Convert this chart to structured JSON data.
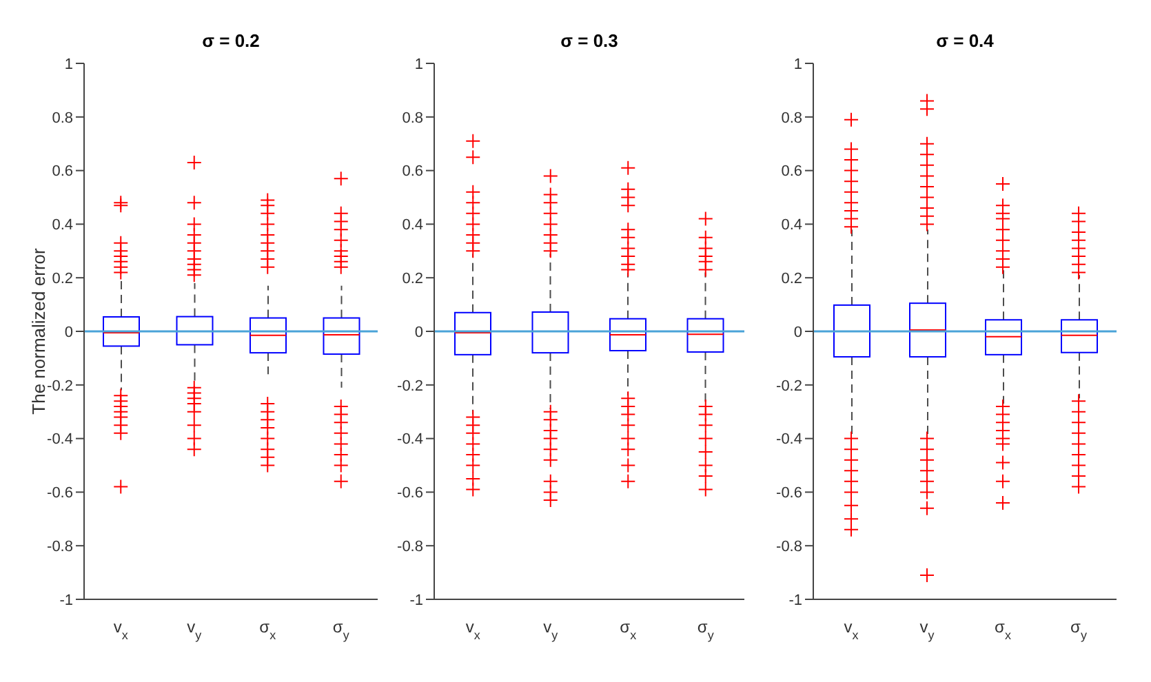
{
  "chart_data": [
    {
      "type": "box",
      "title": "σ = 0.2",
      "ylabel": "The normalized error",
      "categories": [
        "v$_{x}$",
        "v$_{y}$",
        "σ$_{x}$",
        "σ$_{y}$"
      ],
      "color": "#0000ff",
      "marker": "cross",
      "ylim": [
        -1,
        1
      ],
      "yticks": [
        -1,
        -0.8,
        -0.6,
        -0.4,
        -0.2,
        0,
        0.2,
        0.4,
        0.6,
        0.8,
        1
      ],
      "ref_lines": [
        {
          "axis": "y",
          "value": 0,
          "color": "#4aa3d8"
        }
      ],
      "boxes": [
        {
          "low": -0.22,
          "q1": -0.055,
          "median": -0.005,
          "q3": 0.054,
          "high": 0.19,
          "outliers": [
            0.22,
            0.24,
            0.26,
            0.28,
            0.3,
            0.33,
            0.47,
            0.48,
            -0.24,
            -0.26,
            -0.28,
            -0.3,
            -0.32,
            -0.35,
            -0.38,
            -0.58
          ]
        },
        {
          "low": -0.2,
          "q1": -0.05,
          "median": 0,
          "q3": 0.055,
          "high": 0.18,
          "outliers": [
            0.21,
            0.23,
            0.25,
            0.27,
            0.3,
            0.33,
            0.36,
            0.4,
            0.48,
            0.63,
            -0.21,
            -0.23,
            -0.25,
            -0.27,
            -0.3,
            -0.35,
            -0.4,
            -0.44
          ]
        },
        {
          "low": -0.16,
          "q1": -0.08,
          "median": -0.015,
          "q3": 0.05,
          "high": 0.17,
          "outliers": [
            0.24,
            0.27,
            0.3,
            0.33,
            0.36,
            0.4,
            0.44,
            0.47,
            0.49,
            -0.27,
            -0.3,
            -0.33,
            -0.36,
            -0.4,
            -0.44,
            -0.47,
            -0.5
          ]
        },
        {
          "low": -0.21,
          "q1": -0.085,
          "median": -0.013,
          "q3": 0.05,
          "high": 0.17,
          "outliers": [
            0.24,
            0.26,
            0.28,
            0.3,
            0.34,
            0.38,
            0.41,
            0.44,
            0.57,
            -0.28,
            -0.31,
            -0.34,
            -0.38,
            -0.42,
            -0.46,
            -0.5,
            -0.56
          ]
        }
      ]
    },
    {
      "type": "box",
      "title": "σ = 0.3",
      "categories": [
        "v$_{x}$",
        "v$_{y}$",
        "σ$_{x}$",
        "σ$_{y}$"
      ],
      "color": "#0000ff",
      "marker": "cross",
      "ylim": [
        -1,
        1
      ],
      "yticks": [
        -1,
        -0.8,
        -0.6,
        -0.4,
        -0.2,
        0,
        0.2,
        0.4,
        0.6,
        0.8,
        1
      ],
      "ref_lines": [
        {
          "axis": "y",
          "value": 0,
          "color": "#4aa3d8"
        }
      ],
      "boxes": [
        {
          "low": -0.31,
          "q1": -0.087,
          "median": -0.005,
          "q3": 0.07,
          "high": 0.29,
          "outliers": [
            0.3,
            0.33,
            0.36,
            0.4,
            0.44,
            0.48,
            0.52,
            0.65,
            0.71,
            -0.32,
            -0.35,
            -0.38,
            -0.42,
            -0.46,
            -0.5,
            -0.55,
            -0.59
          ]
        },
        {
          "low": -0.29,
          "q1": -0.08,
          "median": 0,
          "q3": 0.072,
          "high": 0.29,
          "outliers": [
            0.3,
            0.33,
            0.36,
            0.4,
            0.44,
            0.48,
            0.51,
            0.58,
            -0.3,
            -0.33,
            -0.37,
            -0.4,
            -0.44,
            -0.48,
            -0.56,
            -0.6,
            -0.63
          ]
        },
        {
          "low": -0.24,
          "q1": -0.072,
          "median": -0.013,
          "q3": 0.047,
          "high": 0.22,
          "outliers": [
            0.23,
            0.25,
            0.28,
            0.31,
            0.35,
            0.38,
            0.47,
            0.5,
            0.53,
            0.61,
            -0.25,
            -0.28,
            -0.31,
            -0.35,
            -0.4,
            -0.44,
            -0.5,
            -0.56
          ]
        },
        {
          "low": -0.27,
          "q1": -0.077,
          "median": -0.011,
          "q3": 0.047,
          "high": 0.22,
          "outliers": [
            0.23,
            0.26,
            0.28,
            0.31,
            0.35,
            0.42,
            -0.28,
            -0.31,
            -0.35,
            -0.4,
            -0.45,
            -0.5,
            -0.54,
            -0.59
          ]
        }
      ]
    },
    {
      "type": "box",
      "title": "σ = 0.4",
      "categories": [
        "v$_{x}$",
        "v$_{y}$",
        "σ$_{x}$",
        "σ$_{y}$"
      ],
      "color": "#0000ff",
      "marker": "cross",
      "ylim": [
        -1,
        1
      ],
      "yticks": [
        -1,
        -0.8,
        -0.6,
        -0.4,
        -0.2,
        0,
        0.2,
        0.4,
        0.6,
        0.8,
        1
      ],
      "ref_lines": [
        {
          "axis": "y",
          "value": 0,
          "color": "#4aa3d8"
        }
      ],
      "boxes": [
        {
          "low": -0.39,
          "q1": -0.095,
          "median": 0,
          "q3": 0.098,
          "high": 0.38,
          "outliers": [
            0.39,
            0.42,
            0.45,
            0.48,
            0.52,
            0.56,
            0.6,
            0.64,
            0.68,
            0.79,
            -0.4,
            -0.44,
            -0.48,
            -0.52,
            -0.56,
            -0.6,
            -0.65,
            -0.7,
            -0.74
          ]
        },
        {
          "low": -0.39,
          "q1": -0.095,
          "median": 0.005,
          "q3": 0.105,
          "high": 0.38,
          "outliers": [
            0.4,
            0.43,
            0.46,
            0.5,
            0.54,
            0.58,
            0.62,
            0.66,
            0.7,
            0.83,
            0.86,
            -0.4,
            -0.44,
            -0.48,
            -0.52,
            -0.56,
            -0.6,
            -0.66,
            -0.91
          ]
        },
        {
          "low": -0.27,
          "q1": -0.087,
          "median": -0.02,
          "q3": 0.043,
          "high": 0.23,
          "outliers": [
            0.24,
            0.27,
            0.3,
            0.34,
            0.38,
            0.42,
            0.44,
            0.47,
            0.55,
            -0.28,
            -0.31,
            -0.34,
            -0.37,
            -0.4,
            -0.42,
            -0.49,
            -0.56,
            -0.64
          ]
        },
        {
          "low": -0.25,
          "q1": -0.079,
          "median": -0.015,
          "q3": 0.043,
          "high": 0.21,
          "outliers": [
            0.22,
            0.25,
            0.28,
            0.31,
            0.34,
            0.37,
            0.41,
            0.44,
            -0.26,
            -0.3,
            -0.34,
            -0.38,
            -0.42,
            -0.46,
            -0.5,
            -0.54,
            -0.58
          ]
        }
      ]
    }
  ]
}
